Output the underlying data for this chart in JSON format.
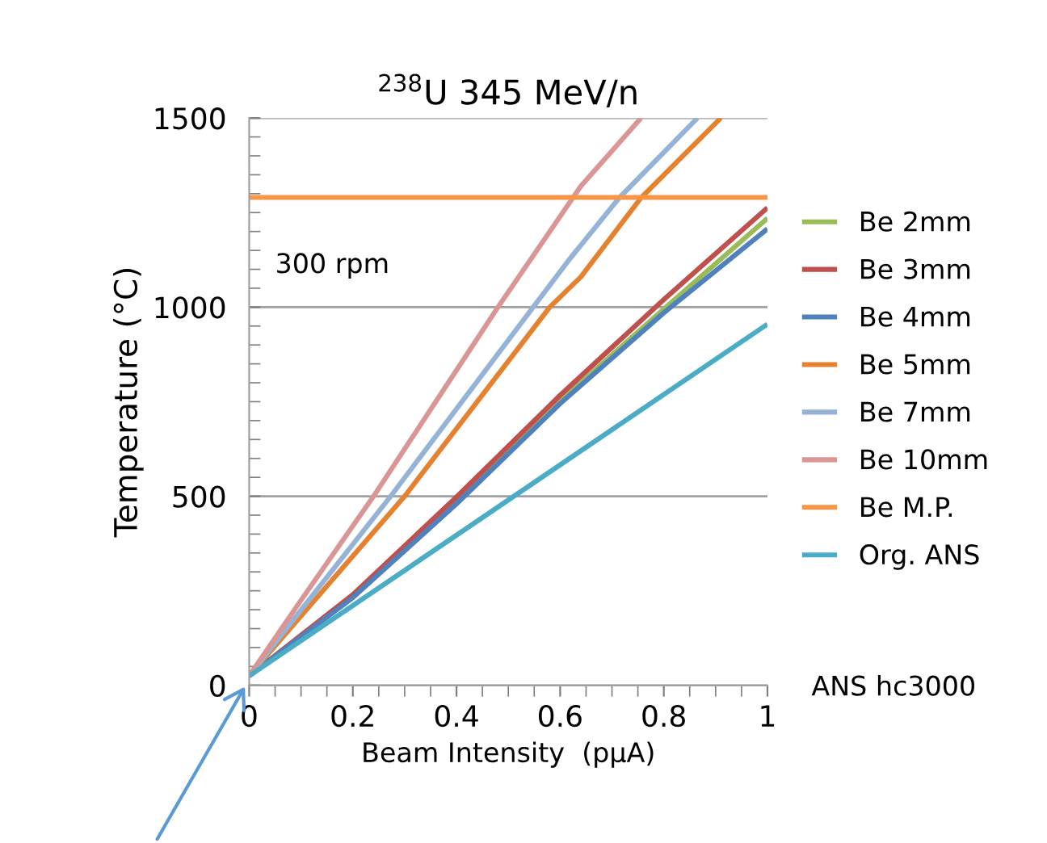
{
  "chart_data": {
    "type": "line",
    "title": "$^{238}$U 345 MeV/n",
    "xlabel": "Beam Intensity  (pμA)",
    "ylabel": "Temperature (°C)",
    "xlim": [
      0,
      1
    ],
    "xticks": [
      0,
      0.2,
      0.4,
      0.6,
      0.8,
      1
    ],
    "ylim": [
      0,
      1500
    ],
    "yticks": [
      0,
      500,
      1000,
      1500
    ],
    "grid": "y",
    "legend": "right",
    "marker": "none",
    "line_style": "solid",
    "annotations": [
      "300 rpm",
      "ANS hc3000"
    ],
    "series": [
      {
        "name": "Be 2mm",
        "color": "#9bbb59",
        "x": [
          0,
          0.2,
          0.4,
          0.6,
          0.8,
          1
        ],
        "values": [
          25,
          235,
          485,
          752,
          995,
          1235
        ]
      },
      {
        "name": "Be 3mm",
        "color": "#c0504d",
        "x": [
          0,
          0.2,
          0.4,
          0.6,
          0.8,
          1
        ],
        "values": [
          25,
          240,
          498,
          767,
          1020,
          1263
        ]
      },
      {
        "name": "Be 4mm",
        "color": "#4f81bd",
        "x": [
          0,
          0.2,
          0.4,
          0.6,
          0.8,
          1
        ],
        "values": [
          25,
          232,
          480,
          745,
          985,
          1207
        ]
      },
      {
        "name": "Be 5mm",
        "color": "#e5822f",
        "x": [
          0,
          0.3,
          0.58,
          0.64,
          0.756,
          0.91
        ],
        "values": [
          25,
          500,
          1000,
          1080,
          1289,
          1500
        ]
      },
      {
        "name": "Be 7mm",
        "color": "#95b3d7",
        "x": [
          0,
          0.273,
          0.548,
          0.62,
          0.714,
          0.865
        ],
        "values": [
          25,
          500,
          1000,
          1130,
          1289,
          1500
        ]
      },
      {
        "name": "Be 10mm",
        "color": "#d99694",
        "x": [
          0,
          0.1,
          0.24,
          0.36,
          0.48,
          0.58,
          0.64,
          0.756
        ],
        "values": [
          25,
          225,
          500,
          750,
          1000,
          1200,
          1320,
          1500
        ]
      },
      {
        "name": "Be M.P.",
        "color": "#f79646",
        "x": [
          0,
          1
        ],
        "values": [
          1290,
          1290
        ]
      },
      {
        "name": "Org. ANS",
        "color": "#4bacc6",
        "x": [
          0,
          1
        ],
        "values": [
          25,
          955
        ]
      }
    ]
  }
}
